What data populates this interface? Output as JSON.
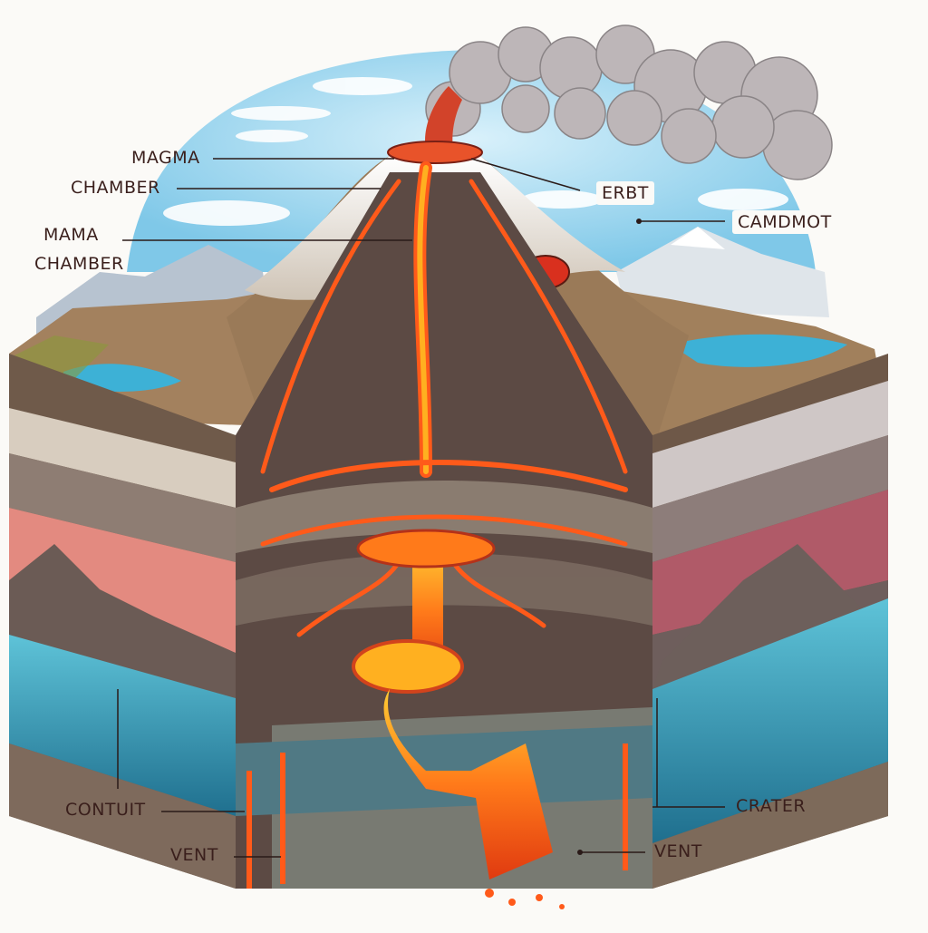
{
  "labels": {
    "magma": "MAGMA",
    "chamber_1": "CHAMBER",
    "mama": "MAMA",
    "chamber_2": "CHAMBER",
    "erbt": "ERBT",
    "camdmot": "CAMDMOT",
    "contuit": "CONTUIT",
    "crater": "CRATER",
    "vent_left": "VENT",
    "vent_right": "VENT"
  },
  "colors": {
    "lava": "#ff5a1a",
    "lava_bright": "#ffb020",
    "sky": "#8fd1ee",
    "water": "#3aa7c9",
    "rock": "#7a6a5c",
    "snow": "#f4f1ec",
    "grass": "#8a9a3a",
    "smoke": "#b8b3b5"
  }
}
